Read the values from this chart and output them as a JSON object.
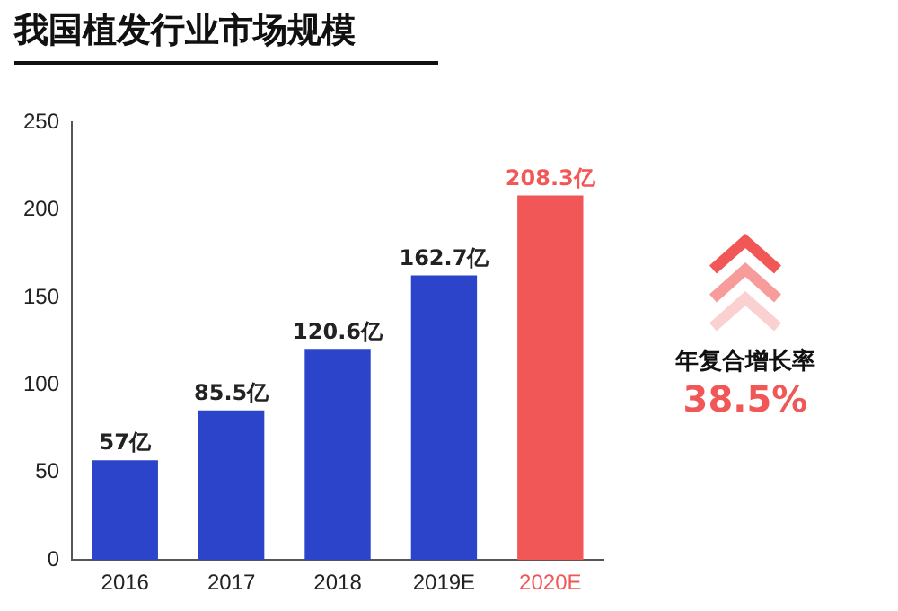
{
  "chart_data": {
    "type": "bar",
    "title": "我国植发行业市场规模",
    "categories": [
      "2016",
      "2017",
      "2018",
      "2019E",
      "2020E"
    ],
    "values": [
      57,
      85.5,
      120.6,
      162.7,
      208.3
    ],
    "colors": [
      "#2b44c9",
      "#2b44c9",
      "#2b44c9",
      "#2b44c9",
      "#f25757"
    ],
    "value_labels": [
      "57亿",
      "85.5亿",
      "120.6亿",
      "162.7亿",
      "208.3亿"
    ],
    "ylim": [
      0,
      250
    ],
    "yticks": [
      0,
      50,
      100,
      150,
      200,
      250
    ],
    "grid": false,
    "legend": false,
    "annotations": [
      "年复合增长率",
      "38.5%"
    ]
  }
}
